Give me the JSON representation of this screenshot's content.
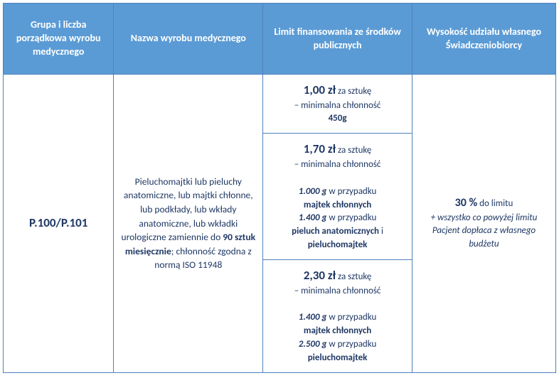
{
  "colors": {
    "header_bg": "#5b9bd5",
    "header_text": "#ffffff",
    "border": "#4f81bd",
    "body_text": "#1f3864",
    "page_bg": "#ffffff"
  },
  "headers": {
    "h1": "Grupa i liczba porządkowa wyrobu medycznego",
    "h2": "Nazwa wyrobu medycznego",
    "h3": "Limit finansowania ze środków publicznych",
    "h4": "Wysokość udziału własnego Świadczeniobiorcy"
  },
  "code": "P.100/P.101",
  "description": {
    "line1": "Pieluchomajtki lub pieluchy anatomiczne, lub majtki chłonne, lub podkłady, lub wkłady anatomiczne, lub wkładki urologiczne zamiennie do",
    "bold_part": "90 sztuk miesięcznie",
    "line2": "; chłonność zgodna z normą ISO 11948"
  },
  "limits": {
    "r1": {
      "price": "1,00 zł",
      "unit": "za sztukę",
      "sub": "– minimalna chłonność",
      "weight": "450g"
    },
    "r2": {
      "price": "1,70 zł",
      "unit": "za sztukę",
      "sub": "– minimalna chłonność",
      "w1": "1.000 g",
      "t1": "w przypadku",
      "b1": "majtek chłonnych",
      "w2": "1.400 g",
      "t2": "w przypadku",
      "b2a": "pieluch anatomicznych",
      "b2mid": "i",
      "b2b": "pieluchomajtek"
    },
    "r3": {
      "price": "2,30 zł",
      "unit": "za sztukę",
      "sub": "– minimalna chłonność",
      "w1": "1.400 g",
      "t1": "w przypadku",
      "b1": "majtek chłonnych",
      "w2": "2.500 g",
      "t2": "w przypadku",
      "b2": "pieluchomajtek"
    }
  },
  "share": {
    "pct": "30 %",
    "pct_tail": "do limitu",
    "note": "+ wszystko co powyżej limitu Pacjent dopłaca z własnego budżetu"
  }
}
